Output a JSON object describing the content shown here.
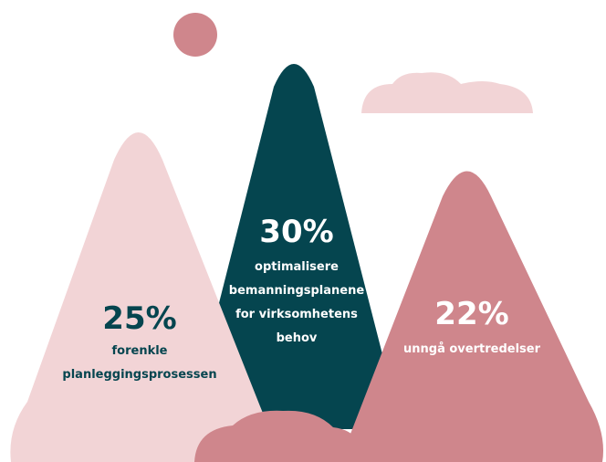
{
  "items": [
    {
      "value": "25%",
      "label": [
        "forenkle",
        "planleggingsprosessen"
      ]
    },
    {
      "value": "30%",
      "label": [
        "optimalisere",
        "bemanningsplanene",
        "for virksomhetens",
        "behov"
      ]
    },
    {
      "value": "22%",
      "label": [
        "unngå overtredelser"
      ]
    }
  ]
}
